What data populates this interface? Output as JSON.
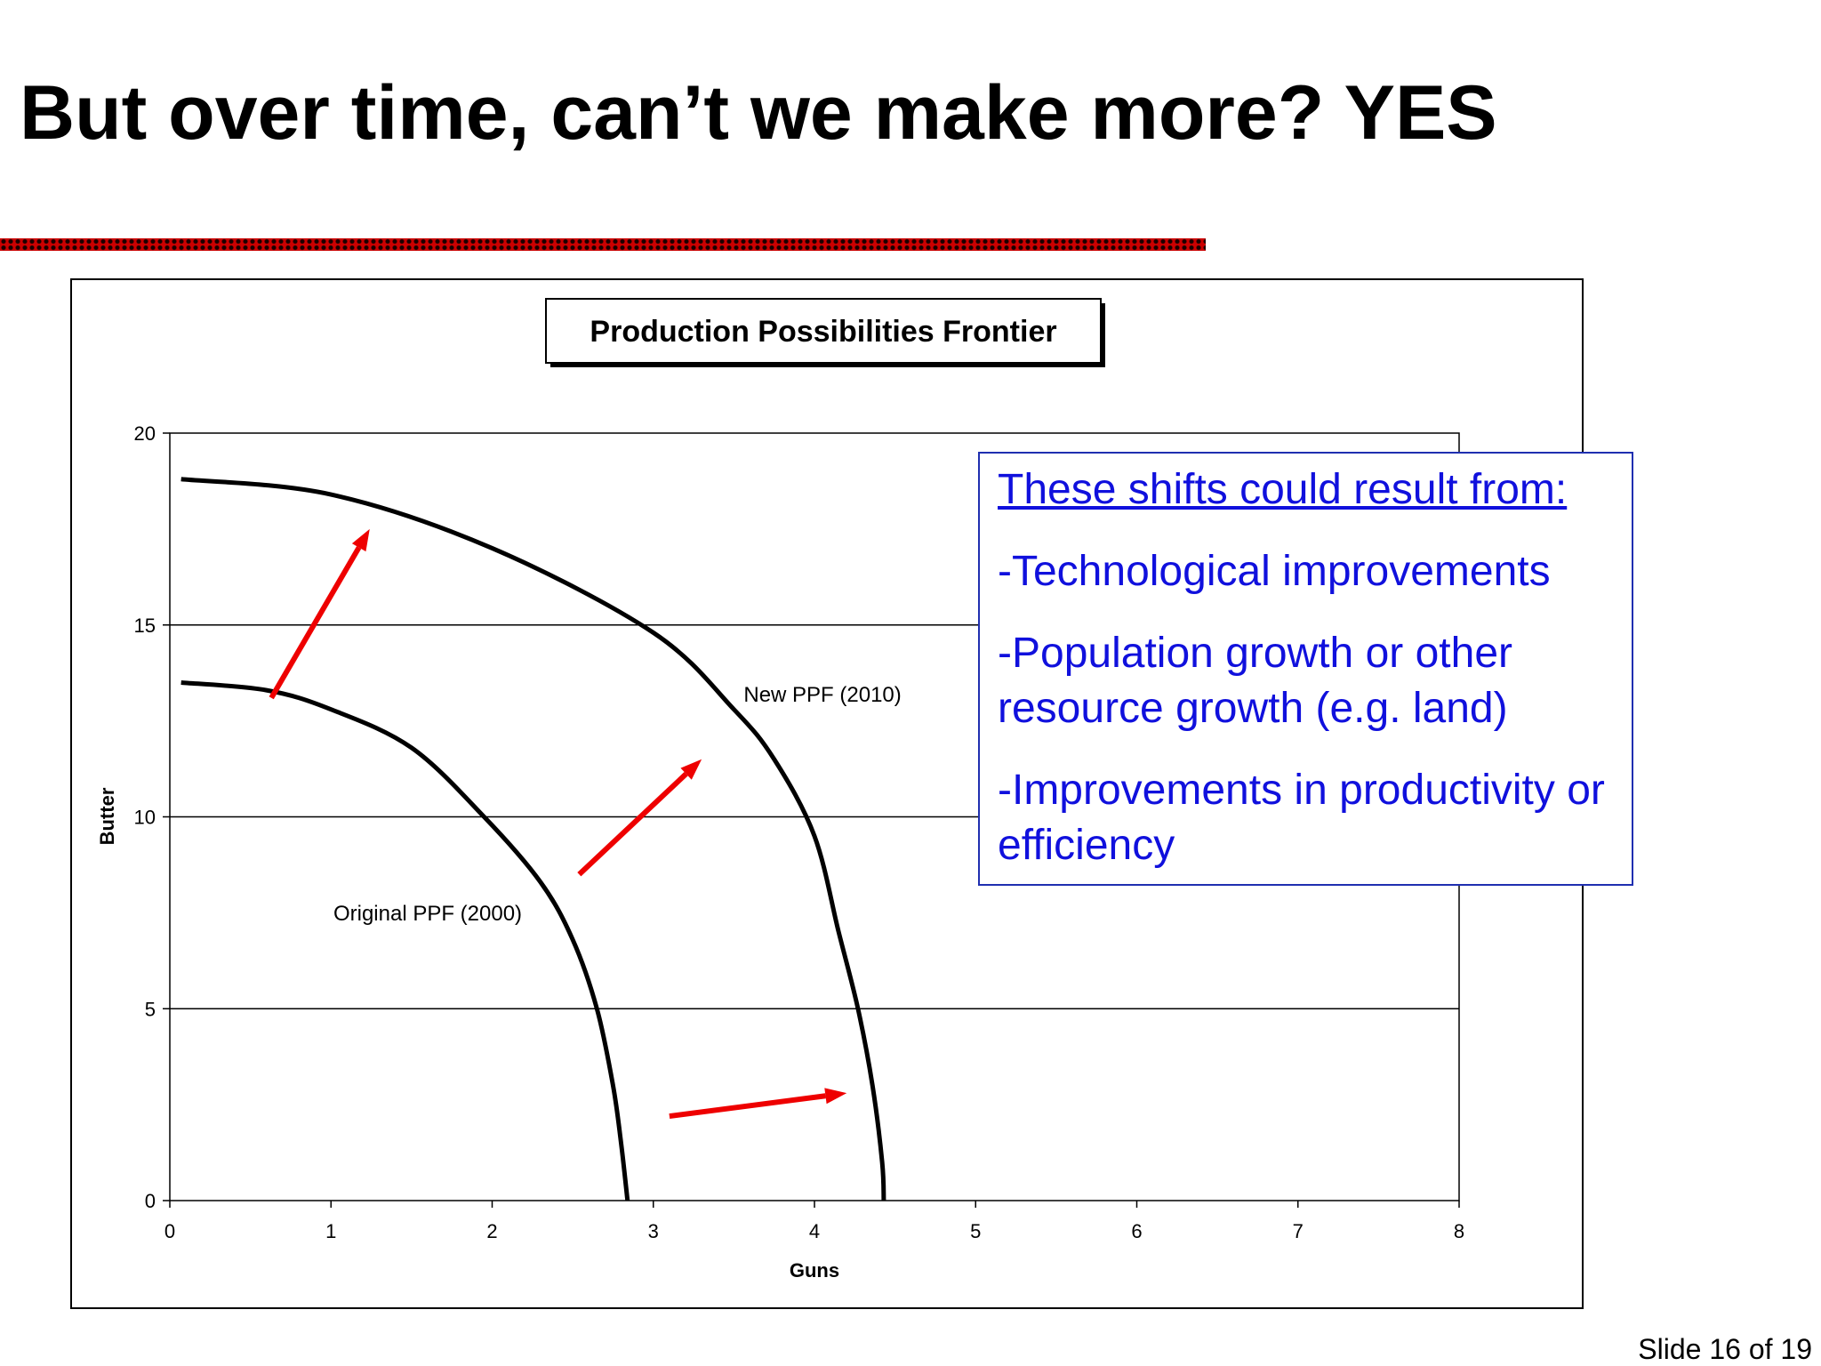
{
  "slide": {
    "title": "But over time, can’t we make more? YES",
    "number_text": "Slide 16 of 19",
    "rule_color": "#cc0000"
  },
  "callout": {
    "heading": "These shifts could result from:",
    "items": [
      "-Technological improvements",
      "-Population growth or other resource growth (e.g. land)",
      "-Improvements in productivity or efficiency"
    ],
    "text_color": "#1010dd"
  },
  "chart_data": {
    "type": "line",
    "title": "Production Possibilities Frontier",
    "xlabel": "Guns",
    "ylabel": "Butter",
    "xlim": [
      0,
      8
    ],
    "ylim": [
      0,
      20
    ],
    "x_ticks": [
      0,
      1,
      2,
      3,
      4,
      5,
      6,
      7,
      8
    ],
    "y_ticks": [
      0,
      5,
      10,
      15,
      20
    ],
    "grid": {
      "horizontal": true,
      "vertical": false
    },
    "series": [
      {
        "name": "Original PPF (2000)",
        "color": "#000000",
        "points": [
          [
            0.07,
            13.5
          ],
          [
            0.6,
            13.3
          ],
          [
            1.0,
            12.8
          ],
          [
            1.5,
            11.8
          ],
          [
            1.95,
            10.0
          ],
          [
            2.3,
            8.3
          ],
          [
            2.5,
            6.8
          ],
          [
            2.65,
            5.0
          ],
          [
            2.75,
            3.0
          ],
          [
            2.8,
            1.5
          ],
          [
            2.84,
            0.0
          ]
        ]
      },
      {
        "name": "New PPF (2010)",
        "color": "#000000",
        "points": [
          [
            0.07,
            18.8
          ],
          [
            1.0,
            18.4
          ],
          [
            2.0,
            17.0
          ],
          [
            3.0,
            14.8
          ],
          [
            3.5,
            12.8
          ],
          [
            3.75,
            11.5
          ],
          [
            4.0,
            9.5
          ],
          [
            4.15,
            7.0
          ],
          [
            4.27,
            5.0
          ],
          [
            4.36,
            3.0
          ],
          [
            4.42,
            1.0
          ],
          [
            4.43,
            0.0
          ]
        ]
      }
    ],
    "annotations": [
      {
        "text": "Original PPF (2000)",
        "x": 1.6,
        "y": 7.3
      },
      {
        "text": "New PPF (2010)",
        "x": 4.05,
        "y": 13.0
      }
    ],
    "arrows": [
      {
        "from": [
          0.63,
          13.1
        ],
        "to": [
          1.24,
          17.5
        ],
        "color": "#ee0000"
      },
      {
        "from": [
          2.54,
          8.5
        ],
        "to": [
          3.3,
          11.5
        ],
        "color": "#ee0000"
      },
      {
        "from": [
          3.1,
          2.2
        ],
        "to": [
          4.2,
          2.8
        ],
        "color": "#ee0000"
      }
    ]
  }
}
